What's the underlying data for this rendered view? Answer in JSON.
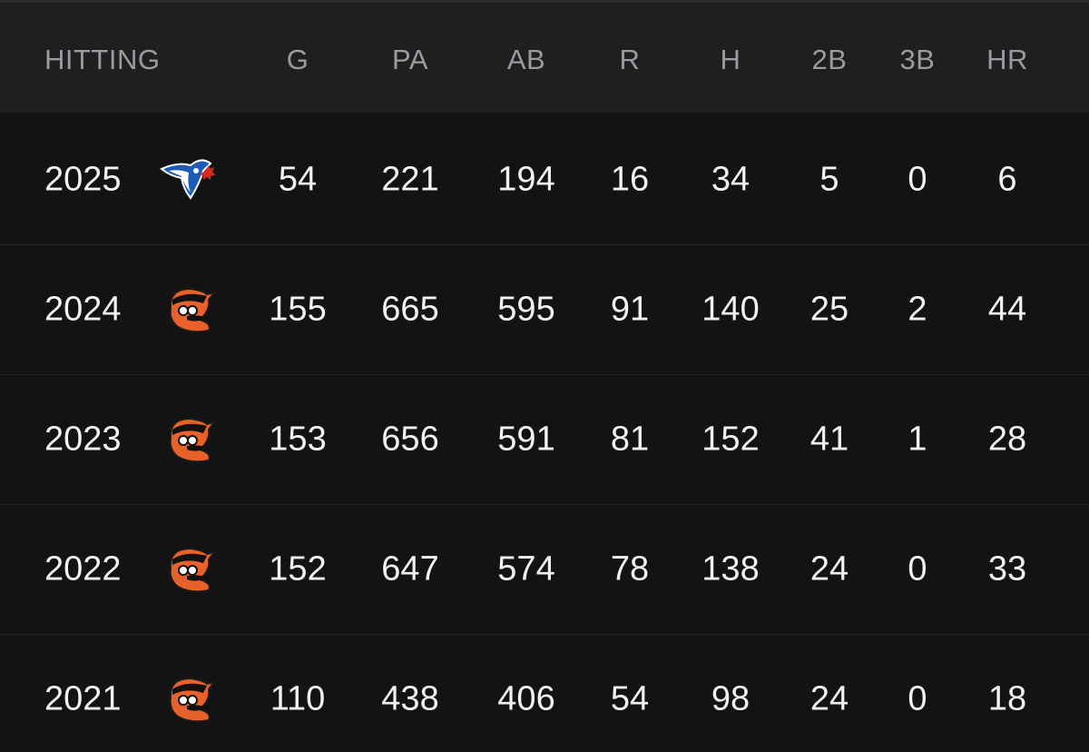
{
  "table": {
    "columns": [
      "HITTING",
      "G",
      "PA",
      "AB",
      "R",
      "H",
      "2B",
      "3B",
      "HR"
    ],
    "rows": [
      [
        2025,
        54,
        221,
        194,
        16,
        34,
        5,
        0,
        6
      ],
      [
        2024,
        155,
        665,
        595,
        91,
        140,
        25,
        2,
        44
      ],
      [
        2023,
        153,
        656,
        591,
        81,
        152,
        41,
        1,
        28
      ],
      [
        2022,
        152,
        647,
        574,
        78,
        138,
        24,
        0,
        33
      ],
      [
        2021,
        110,
        438,
        406,
        54,
        98,
        24,
        0,
        18
      ]
    ]
  }
}
